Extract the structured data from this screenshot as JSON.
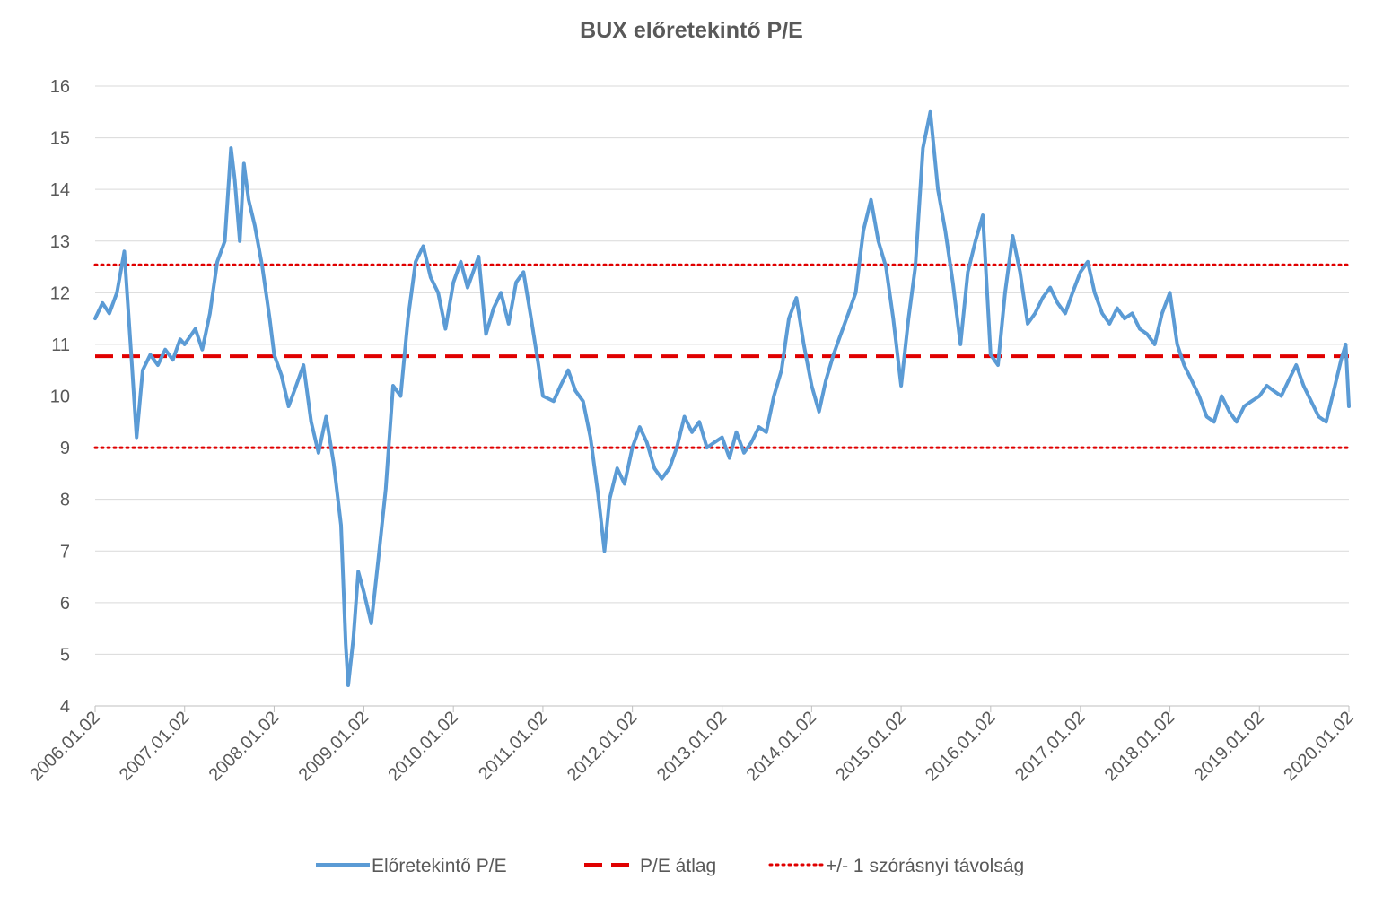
{
  "chart_data": {
    "type": "line",
    "title": "BUX előretekintő P/E",
    "xlabel": "",
    "ylabel": "",
    "ylim": [
      4,
      16
    ],
    "yticks": [
      4,
      5,
      6,
      7,
      8,
      9,
      10,
      11,
      12,
      13,
      14,
      15,
      16
    ],
    "xlim": [
      "2006.01.02",
      "2020.01.02"
    ],
    "xticks": [
      "2006.01.02",
      "2007.01.02",
      "2008.01.02",
      "2009.01.02",
      "2010.01.02",
      "2011.01.02",
      "2012.01.02",
      "2013.01.02",
      "2014.01.02",
      "2015.01.02",
      "2016.01.02",
      "2017.01.02",
      "2018.01.02",
      "2019.01.02",
      "2020.01.02"
    ],
    "grid": "horizontal",
    "legend_position": "bottom",
    "series": [
      {
        "name": "Előretekintő P/E",
        "color": "#5B9BD5",
        "style": "solid",
        "points": [
          [
            "2006.01.02",
            11.5
          ],
          [
            "2006.02.01",
            11.8
          ],
          [
            "2006.03.01",
            11.6
          ],
          [
            "2006.04.01",
            12.0
          ],
          [
            "2006.05.01",
            12.8
          ],
          [
            "2006.06.01",
            10.6
          ],
          [
            "2006.06.20",
            9.2
          ],
          [
            "2006.07.15",
            10.5
          ],
          [
            "2006.08.15",
            10.8
          ],
          [
            "2006.09.15",
            10.6
          ],
          [
            "2006.10.15",
            10.9
          ],
          [
            "2006.11.15",
            10.7
          ],
          [
            "2006.12.15",
            11.1
          ],
          [
            "2007.01.02",
            11.0
          ],
          [
            "2007.02.15",
            11.3
          ],
          [
            "2007.03.15",
            10.9
          ],
          [
            "2007.04.15",
            11.6
          ],
          [
            "2007.05.15",
            12.6
          ],
          [
            "2007.06.15",
            13.0
          ],
          [
            "2007.07.10",
            14.8
          ],
          [
            "2007.07.25",
            14.2
          ],
          [
            "2007.08.15",
            13.0
          ],
          [
            "2007.09.01",
            14.5
          ],
          [
            "2007.09.20",
            13.8
          ],
          [
            "2007.10.15",
            13.3
          ],
          [
            "2007.11.15",
            12.5
          ],
          [
            "2007.12.15",
            11.5
          ],
          [
            "2008.01.02",
            10.8
          ],
          [
            "2008.02.01",
            10.4
          ],
          [
            "2008.03.01",
            9.8
          ],
          [
            "2008.04.01",
            10.2
          ],
          [
            "2008.05.01",
            10.6
          ],
          [
            "2008.06.01",
            9.5
          ],
          [
            "2008.07.01",
            8.9
          ],
          [
            "2008.08.01",
            9.6
          ],
          [
            "2008.09.01",
            8.7
          ],
          [
            "2008.10.01",
            7.5
          ],
          [
            "2008.10.20",
            5.2
          ],
          [
            "2008.10.30",
            4.4
          ],
          [
            "2008.11.20",
            5.3
          ],
          [
            "2008.12.10",
            6.6
          ],
          [
            "2009.01.02",
            6.2
          ],
          [
            "2009.02.01",
            5.6
          ],
          [
            "2009.03.01",
            6.8
          ],
          [
            "2009.04.01",
            8.2
          ],
          [
            "2009.05.01",
            10.2
          ],
          [
            "2009.06.01",
            10.0
          ],
          [
            "2009.07.01",
            11.5
          ],
          [
            "2009.08.01",
            12.6
          ],
          [
            "2009.09.01",
            12.9
          ],
          [
            "2009.10.01",
            12.3
          ],
          [
            "2009.11.01",
            12.0
          ],
          [
            "2009.12.01",
            11.3
          ],
          [
            "2010.01.02",
            12.2
          ],
          [
            "2010.02.01",
            12.6
          ],
          [
            "2010.03.01",
            12.1
          ],
          [
            "2010.04.15",
            12.7
          ],
          [
            "2010.05.15",
            11.2
          ],
          [
            "2010.06.15",
            11.7
          ],
          [
            "2010.07.15",
            12.0
          ],
          [
            "2010.08.15",
            11.4
          ],
          [
            "2010.09.15",
            12.2
          ],
          [
            "2010.10.15",
            12.4
          ],
          [
            "2010.11.15",
            11.5
          ],
          [
            "2010.12.15",
            10.6
          ],
          [
            "2011.01.02",
            10.0
          ],
          [
            "2011.02.15",
            9.9
          ],
          [
            "2011.03.15",
            10.2
          ],
          [
            "2011.04.15",
            10.5
          ],
          [
            "2011.05.15",
            10.1
          ],
          [
            "2011.06.15",
            9.9
          ],
          [
            "2011.07.15",
            9.2
          ],
          [
            "2011.08.15",
            8.1
          ],
          [
            "2011.09.10",
            7.0
          ],
          [
            "2011.10.01",
            8.0
          ],
          [
            "2011.11.01",
            8.6
          ],
          [
            "2011.12.01",
            8.3
          ],
          [
            "2012.01.02",
            9.0
          ],
          [
            "2012.02.01",
            9.4
          ],
          [
            "2012.03.01",
            9.1
          ],
          [
            "2012.04.01",
            8.6
          ],
          [
            "2012.05.01",
            8.4
          ],
          [
            "2012.06.01",
            8.6
          ],
          [
            "2012.07.01",
            9.0
          ],
          [
            "2012.08.01",
            9.6
          ],
          [
            "2012.09.01",
            9.3
          ],
          [
            "2012.10.01",
            9.5
          ],
          [
            "2012.11.01",
            9.0
          ],
          [
            "2012.12.01",
            9.1
          ],
          [
            "2013.01.02",
            9.2
          ],
          [
            "2013.02.01",
            8.8
          ],
          [
            "2013.03.01",
            9.3
          ],
          [
            "2013.04.01",
            8.9
          ],
          [
            "2013.05.01",
            9.1
          ],
          [
            "2013.06.01",
            9.4
          ],
          [
            "2013.07.01",
            9.3
          ],
          [
            "2013.08.01",
            10.0
          ],
          [
            "2013.09.01",
            10.5
          ],
          [
            "2013.10.01",
            11.5
          ],
          [
            "2013.11.01",
            11.9
          ],
          [
            "2013.12.01",
            11.0
          ],
          [
            "2014.01.02",
            10.2
          ],
          [
            "2014.02.01",
            9.7
          ],
          [
            "2014.03.01",
            10.3
          ],
          [
            "2014.04.01",
            10.8
          ],
          [
            "2014.05.01",
            11.2
          ],
          [
            "2014.06.01",
            11.6
          ],
          [
            "2014.07.01",
            12.0
          ],
          [
            "2014.08.01",
            13.2
          ],
          [
            "2014.09.01",
            13.8
          ],
          [
            "2014.10.01",
            13.0
          ],
          [
            "2014.11.01",
            12.5
          ],
          [
            "2014.12.01",
            11.5
          ],
          [
            "2015.01.02",
            10.2
          ],
          [
            "2015.02.01",
            11.5
          ],
          [
            "2015.03.01",
            12.5
          ],
          [
            "2015.04.01",
            14.8
          ],
          [
            "2015.05.01",
            15.5
          ],
          [
            "2015.06.01",
            14.0
          ],
          [
            "2015.07.01",
            13.2
          ],
          [
            "2015.08.01",
            12.2
          ],
          [
            "2015.09.01",
            11.0
          ],
          [
            "2015.10.01",
            12.4
          ],
          [
            "2015.11.01",
            13.0
          ],
          [
            "2015.12.01",
            13.5
          ],
          [
            "2016.01.02",
            10.8
          ],
          [
            "2016.02.01",
            10.6
          ],
          [
            "2016.03.01",
            12.0
          ],
          [
            "2016.04.01",
            13.1
          ],
          [
            "2016.05.01",
            12.4
          ],
          [
            "2016.06.01",
            11.4
          ],
          [
            "2016.07.01",
            11.6
          ],
          [
            "2016.08.01",
            11.9
          ],
          [
            "2016.09.01",
            12.1
          ],
          [
            "2016.10.01",
            11.8
          ],
          [
            "2016.11.01",
            11.6
          ],
          [
            "2016.12.01",
            12.0
          ],
          [
            "2017.01.02",
            12.4
          ],
          [
            "2017.02.01",
            12.6
          ],
          [
            "2017.03.01",
            12.0
          ],
          [
            "2017.04.01",
            11.6
          ],
          [
            "2017.05.01",
            11.4
          ],
          [
            "2017.06.01",
            11.7
          ],
          [
            "2017.07.01",
            11.5
          ],
          [
            "2017.08.01",
            11.6
          ],
          [
            "2017.09.01",
            11.3
          ],
          [
            "2017.10.01",
            11.2
          ],
          [
            "2017.11.01",
            11.0
          ],
          [
            "2017.12.01",
            11.6
          ],
          [
            "2018.01.02",
            12.0
          ],
          [
            "2018.02.01",
            11.0
          ],
          [
            "2018.03.01",
            10.6
          ],
          [
            "2018.04.01",
            10.3
          ],
          [
            "2018.05.01",
            10.0
          ],
          [
            "2018.06.01",
            9.6
          ],
          [
            "2018.07.01",
            9.5
          ],
          [
            "2018.08.01",
            10.0
          ],
          [
            "2018.09.01",
            9.7
          ],
          [
            "2018.10.01",
            9.5
          ],
          [
            "2018.11.01",
            9.8
          ],
          [
            "2018.12.01",
            9.9
          ],
          [
            "2019.01.02",
            10.0
          ],
          [
            "2019.02.01",
            10.2
          ],
          [
            "2019.03.01",
            10.1
          ],
          [
            "2019.04.01",
            10.0
          ],
          [
            "2019.05.01",
            10.3
          ],
          [
            "2019.06.01",
            10.6
          ],
          [
            "2019.07.01",
            10.2
          ],
          [
            "2019.08.01",
            9.9
          ],
          [
            "2019.09.01",
            9.6
          ],
          [
            "2019.10.01",
            9.5
          ],
          [
            "2019.11.01",
            10.1
          ],
          [
            "2019.12.01",
            10.7
          ],
          [
            "2019.12.20",
            11.0
          ],
          [
            "2020.01.02",
            9.8
          ]
        ]
      },
      {
        "name": "P/E átlag",
        "color": "#E00000",
        "style": "dashed",
        "value": 10.77
      },
      {
        "name": "+/- 1 szórásnyi távolság",
        "color": "#E00000",
        "style": "dotted",
        "values": [
          9.0,
          12.54
        ]
      }
    ]
  }
}
